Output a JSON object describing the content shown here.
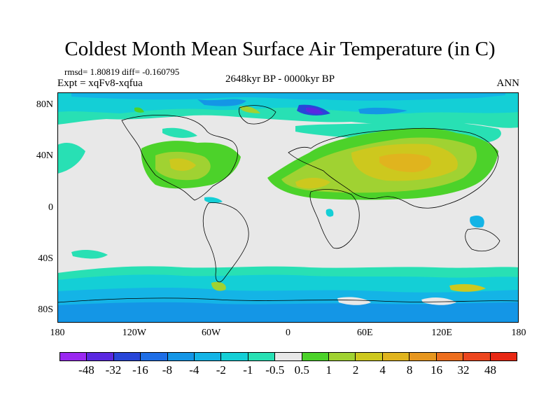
{
  "title": "Coldest Month Mean Surface Air Temperature (in C)",
  "stats": "rmsd= 1.80819 diff= -0.160795",
  "experiment": "Expt = xqFv8-xqfua",
  "period": "2648kyr BP - 0000kyr BP",
  "season": "ANN",
  "chart_data": {
    "type": "heatmap",
    "x_tick_labels": [
      "180",
      "120W",
      "60W",
      "0",
      "60E",
      "120E",
      "180"
    ],
    "x_tick_values": [
      -180,
      -120,
      -60,
      0,
      60,
      120,
      180
    ],
    "y_tick_labels": [
      "80N",
      "40N",
      "0",
      "40S",
      "80S"
    ],
    "y_tick_values": [
      80,
      40,
      0,
      -40,
      -80
    ],
    "xlim": [
      -180,
      180
    ],
    "ylim": [
      -90,
      90
    ],
    "colorbar": {
      "labels": [
        "-48",
        "-32",
        "-16",
        "-8",
        "-4",
        "-2",
        "-1",
        "-0.5",
        "0.5",
        "1",
        "2",
        "4",
        "8",
        "16",
        "32",
        "48"
      ],
      "colors": [
        "#9a28f0",
        "#5a28e0",
        "#2846d8",
        "#1e6ee6",
        "#1496e6",
        "#14b4e6",
        "#14cfd6",
        "#28e0b4",
        "#e8e8e8",
        "#4cd22a",
        "#a0d232",
        "#cdc81e",
        "#e0b41e",
        "#e6961e",
        "#ec6e1e",
        "#ec461e",
        "#e82814"
      ]
    }
  }
}
